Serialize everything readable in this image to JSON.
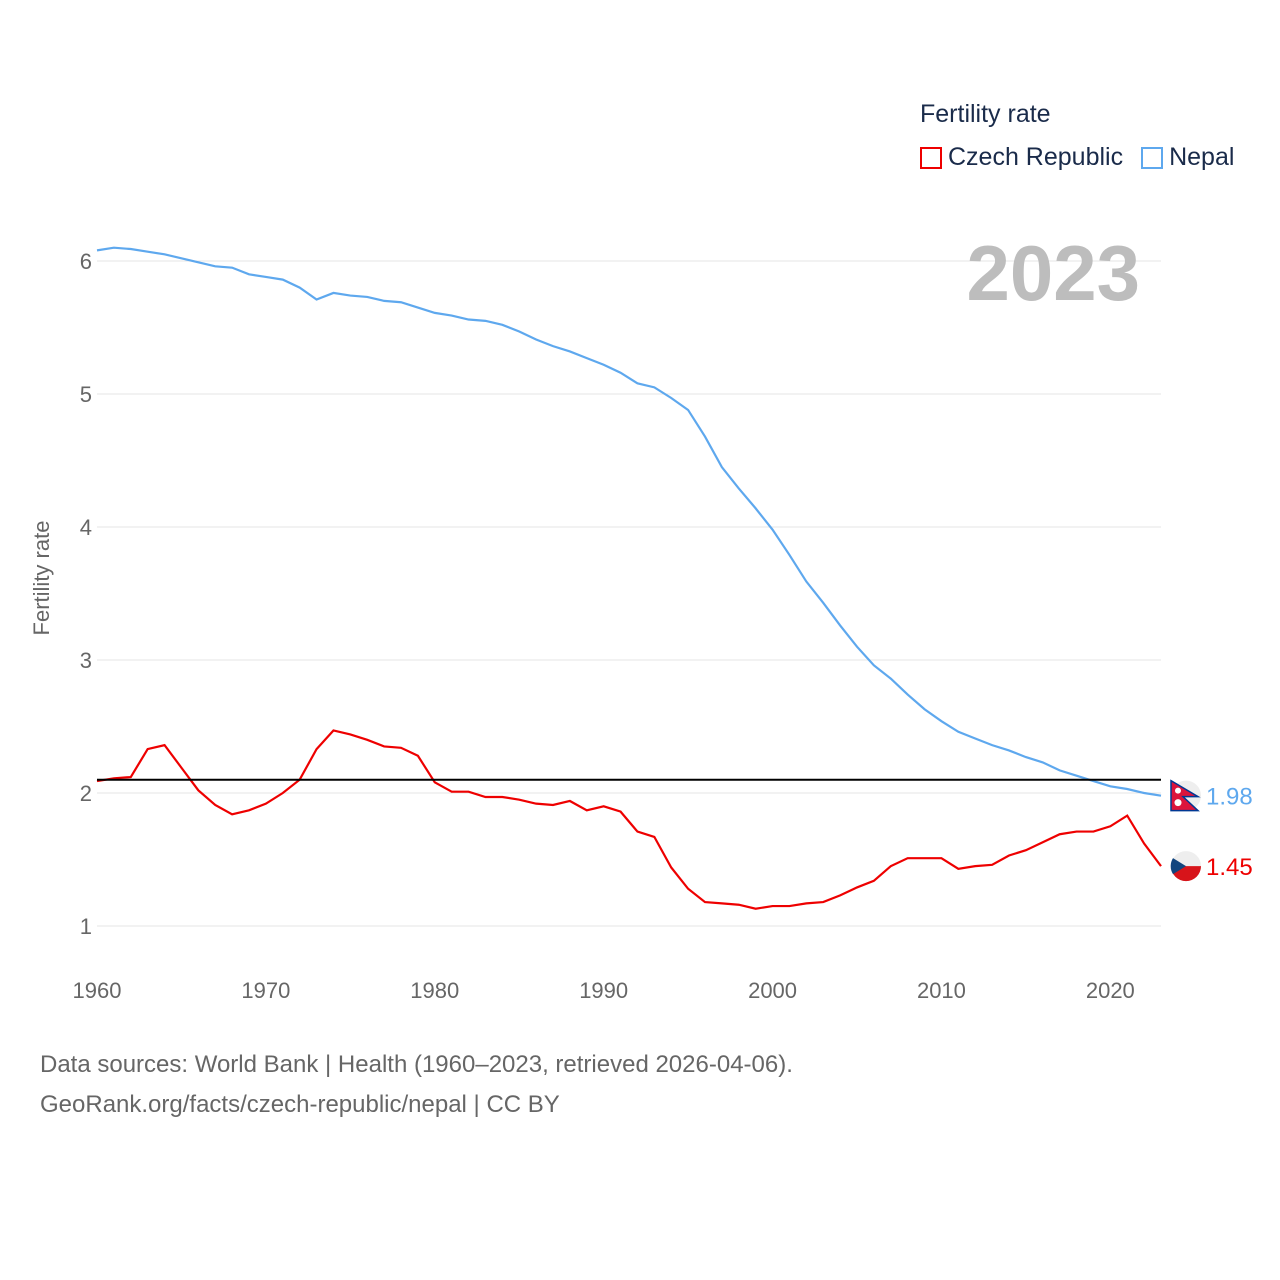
{
  "chart_data": {
    "type": "line",
    "title": "Fertility rate",
    "ylabel": "Fertility rate",
    "xlabel": "",
    "year_label": "2023",
    "xlim": [
      1960,
      2023
    ],
    "ylim": [
      1,
      6
    ],
    "x_ticks": [
      "1960",
      "1970",
      "1980",
      "1990",
      "2000",
      "2010",
      "2020"
    ],
    "y_ticks": [
      "1",
      "2",
      "3",
      "4",
      "5",
      "6"
    ],
    "reference_line": 2.1,
    "x": [
      1960,
      1961,
      1962,
      1963,
      1964,
      1965,
      1966,
      1967,
      1968,
      1969,
      1970,
      1971,
      1972,
      1973,
      1974,
      1975,
      1976,
      1977,
      1978,
      1979,
      1980,
      1981,
      1982,
      1983,
      1984,
      1985,
      1986,
      1987,
      1988,
      1989,
      1990,
      1991,
      1992,
      1993,
      1994,
      1995,
      1996,
      1997,
      1998,
      1999,
      2000,
      2001,
      2002,
      2003,
      2004,
      2005,
      2006,
      2007,
      2008,
      2009,
      2010,
      2011,
      2012,
      2013,
      2014,
      2015,
      2016,
      2017,
      2018,
      2019,
      2020,
      2021,
      2022,
      2023
    ],
    "series": [
      {
        "name": "Czech Republic",
        "color": "#ee0000",
        "end_label": "1.45",
        "values": [
          2.09,
          2.11,
          2.12,
          2.33,
          2.36,
          2.19,
          2.02,
          1.91,
          1.84,
          1.87,
          1.92,
          2.0,
          2.1,
          2.33,
          2.47,
          2.44,
          2.4,
          2.35,
          2.34,
          2.28,
          2.08,
          2.01,
          2.01,
          1.97,
          1.97,
          1.95,
          1.92,
          1.91,
          1.94,
          1.87,
          1.9,
          1.86,
          1.71,
          1.67,
          1.44,
          1.28,
          1.18,
          1.17,
          1.16,
          1.13,
          1.15,
          1.15,
          1.17,
          1.18,
          1.23,
          1.29,
          1.34,
          1.45,
          1.51,
          1.51,
          1.51,
          1.43,
          1.45,
          1.46,
          1.53,
          1.57,
          1.63,
          1.69,
          1.71,
          1.71,
          1.75,
          1.83,
          1.62,
          1.45
        ]
      },
      {
        "name": "Nepal",
        "color": "#5ea8ee",
        "end_label": "1.98",
        "values": [
          6.08,
          6.1,
          6.09,
          6.07,
          6.05,
          6.02,
          5.99,
          5.96,
          5.95,
          5.9,
          5.88,
          5.86,
          5.8,
          5.71,
          5.76,
          5.74,
          5.73,
          5.7,
          5.69,
          5.65,
          5.61,
          5.59,
          5.56,
          5.55,
          5.52,
          5.47,
          5.41,
          5.36,
          5.32,
          5.27,
          5.22,
          5.16,
          5.08,
          5.05,
          4.97,
          4.88,
          4.68,
          4.45,
          4.29,
          4.14,
          3.98,
          3.79,
          3.59,
          3.43,
          3.26,
          3.1,
          2.96,
          2.86,
          2.74,
          2.63,
          2.54,
          2.46,
          2.41,
          2.36,
          2.32,
          2.27,
          2.23,
          2.17,
          2.13,
          2.09,
          2.05,
          2.03,
          2.0,
          1.98
        ]
      }
    ],
    "legend_position": "top-right"
  },
  "footer": {
    "line1": "Data sources: World Bank | Health (1960–2023, retrieved 2026-04-06).",
    "line2": "GeoRank.org/facts/czech-republic/nepal | CC BY"
  }
}
